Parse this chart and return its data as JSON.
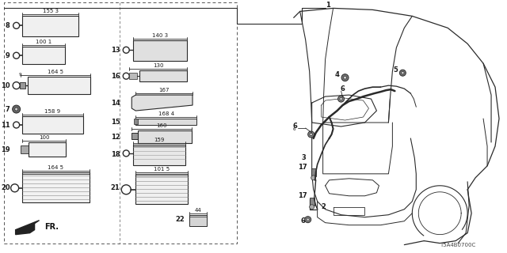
{
  "bg_color": "#ffffff",
  "lc": "#2a2a2a",
  "part_number": "T5A4B0700C"
}
